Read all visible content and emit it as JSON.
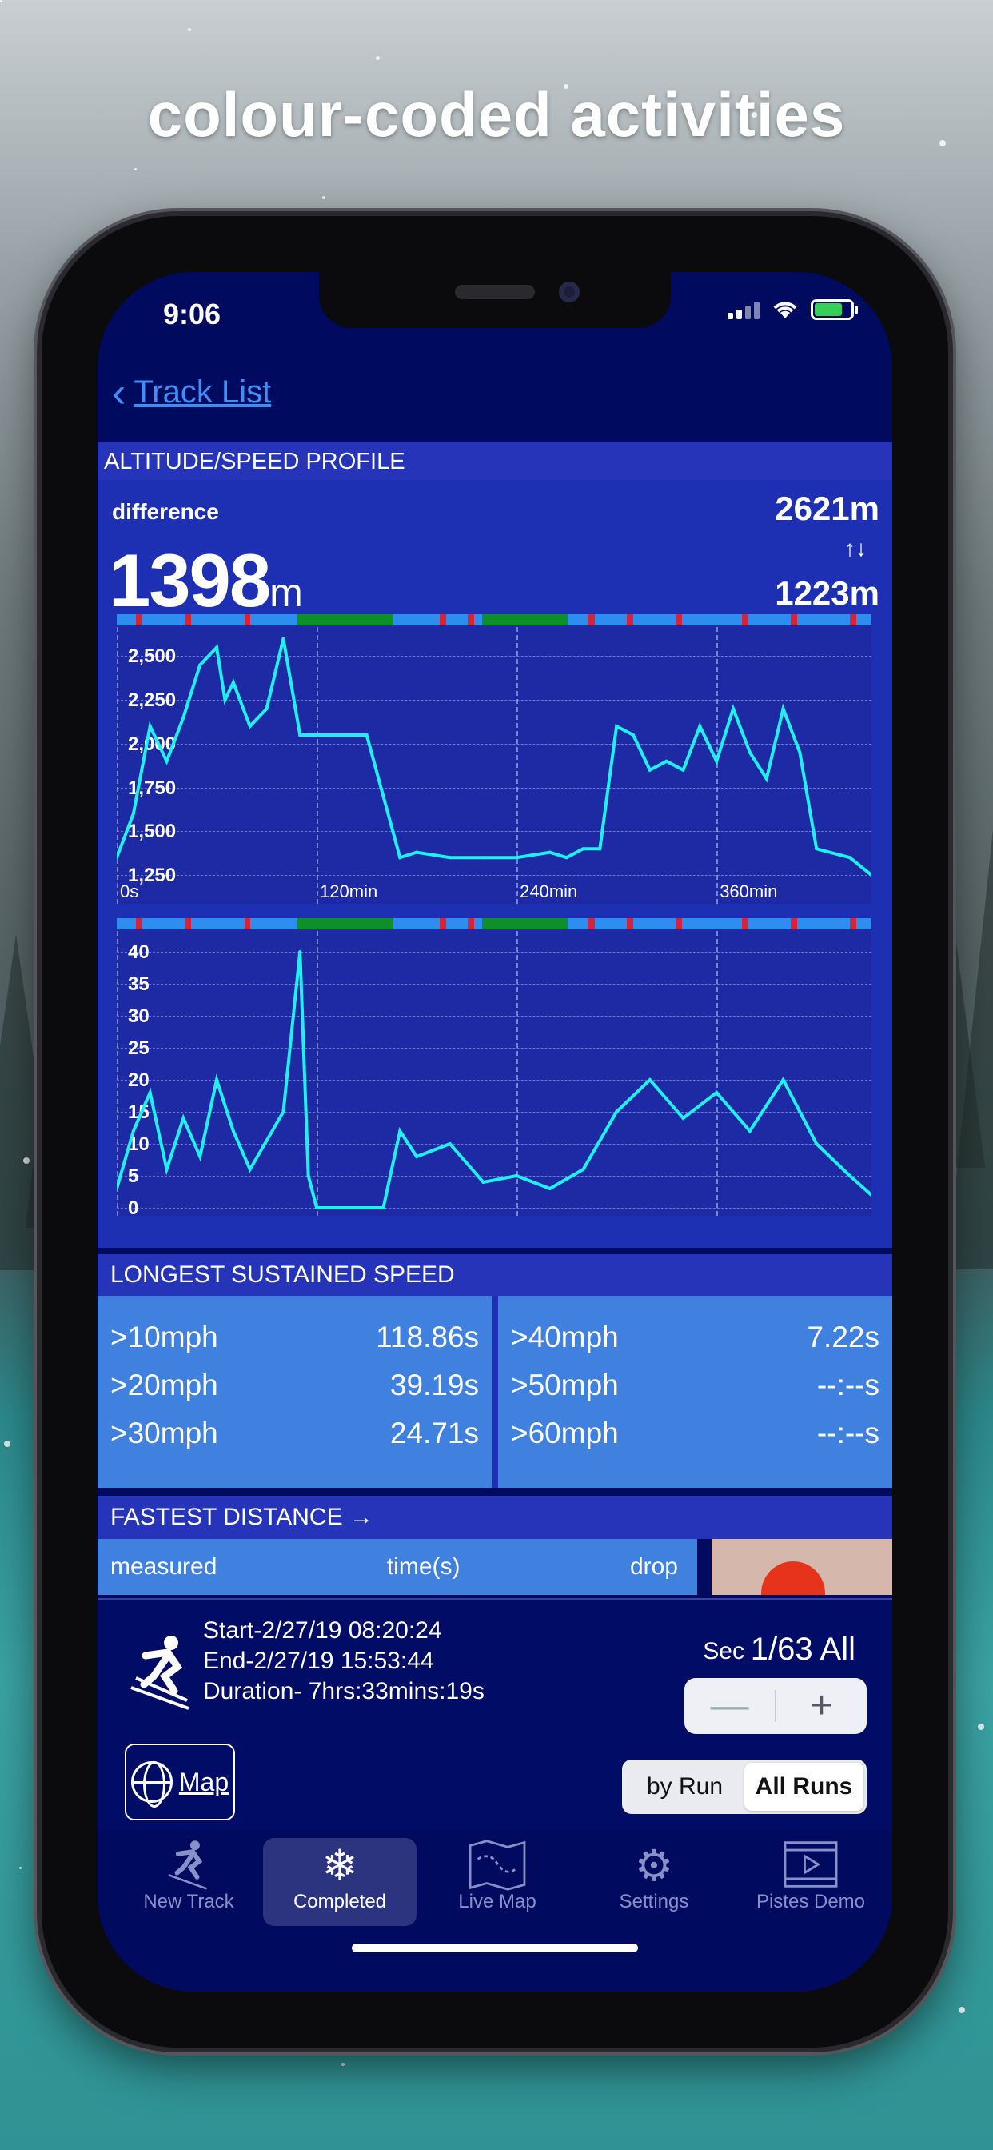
{
  "headline": "colour-coded activities",
  "status": {
    "time": "9:06"
  },
  "nav": {
    "back_label": "Track List"
  },
  "profile": {
    "section_title": "ALTITUDE/SPEED PROFILE",
    "difference_label": "difference",
    "difference_value": "1398",
    "difference_unit": "m",
    "max_altitude": "2621m",
    "min_altitude": "1223m",
    "arrows_icon": "↑↓"
  },
  "chart_data": [
    {
      "type": "line",
      "title": "",
      "xlabel": "",
      "ylabel": "",
      "x_ticks": [
        "0s",
        "120min",
        "240min",
        "360min"
      ],
      "y_ticks": [
        "2,500",
        "2,250",
        "2,000",
        "1,750",
        "1,500",
        "1,250"
      ],
      "ylim": [
        1223,
        2621
      ],
      "series": [
        {
          "x": [
            0,
            10,
            20,
            30,
            40,
            50,
            60,
            65,
            70,
            80,
            90,
            100,
            110,
            115,
            120,
            130,
            140,
            150,
            160,
            170,
            180,
            200,
            220,
            240,
            260,
            270,
            280,
            290,
            300,
            310,
            320,
            330,
            340,
            350,
            360,
            370,
            380,
            390,
            400,
            410,
            420,
            440,
            453
          ],
          "values": [
            1350,
            1600,
            2100,
            1900,
            2150,
            2450,
            2550,
            2250,
            2350,
            2100,
            2200,
            2600,
            2050,
            2050,
            2050,
            2050,
            2050,
            2050,
            1700,
            1350,
            1380,
            1350,
            1350,
            1350,
            1380,
            1350,
            1400,
            1400,
            2100,
            2050,
            1850,
            1900,
            1850,
            2100,
            1900,
            2200,
            1950,
            1800,
            2200,
            1950,
            1400,
            1350,
            1250
          ]
        }
      ],
      "grid": true
    },
    {
      "type": "line",
      "title": "",
      "xlabel": "",
      "ylabel": "",
      "y_ticks": [
        "40",
        "35",
        "30",
        "25",
        "20",
        "15",
        "10",
        "5",
        "0"
      ],
      "ylim": [
        0,
        42
      ],
      "series": [
        {
          "x": [
            0,
            10,
            20,
            30,
            40,
            50,
            60,
            70,
            80,
            100,
            110,
            115,
            120,
            130,
            150,
            160,
            170,
            180,
            200,
            220,
            240,
            260,
            280,
            300,
            320,
            340,
            360,
            380,
            400,
            420,
            440,
            453
          ],
          "values": [
            3,
            12,
            18,
            6,
            14,
            8,
            20,
            12,
            6,
            15,
            40,
            5,
            0,
            0,
            0,
            0,
            12,
            8,
            10,
            4,
            5,
            3,
            6,
            15,
            20,
            14,
            18,
            12,
            20,
            10,
            5,
            2
          ]
        }
      ],
      "grid": true
    }
  ],
  "strip_colors": {
    "blue": "#2d8ef0",
    "red": "#d6223a",
    "green": "#0f8f2a",
    "line": "#1ff0f0"
  },
  "speed": {
    "section_title": "LONGEST SUSTAINED SPEED",
    "left": [
      {
        "label": ">10mph",
        "value": "118.86s"
      },
      {
        "label": ">20mph",
        "value": "39.19s"
      },
      {
        "label": ">30mph",
        "value": "24.71s"
      }
    ],
    "right": [
      {
        "label": ">40mph",
        "value": "7.22s"
      },
      {
        "label": ">50mph",
        "value": "--:--s"
      },
      {
        "label": ">60mph",
        "value": "--:--s"
      }
    ]
  },
  "fastest": {
    "section_title": "FASTEST DISTANCE →",
    "col1": "measured",
    "col2": "time(s)",
    "col3": "drop"
  },
  "track": {
    "start": "Start-2/27/19 08:20:24",
    "end": "End-2/27/19 15:53:44",
    "duration": "Duration- 7hrs:33mins:19s",
    "sec_label": "Sec",
    "sec_value": "1/63 All",
    "minus": "—",
    "plus": "+",
    "map_label": "Map",
    "seg_by_run": "by Run",
    "seg_all_runs": "All Runs"
  },
  "tabs": [
    {
      "label": "New Track",
      "icon": "skier-icon"
    },
    {
      "label": "Completed",
      "icon": "snowflakes-icon"
    },
    {
      "label": "Live Map",
      "icon": "map-icon"
    },
    {
      "label": "Settings",
      "icon": "gear-icon"
    },
    {
      "label": "Pistes Demo",
      "icon": "video-icon"
    }
  ]
}
